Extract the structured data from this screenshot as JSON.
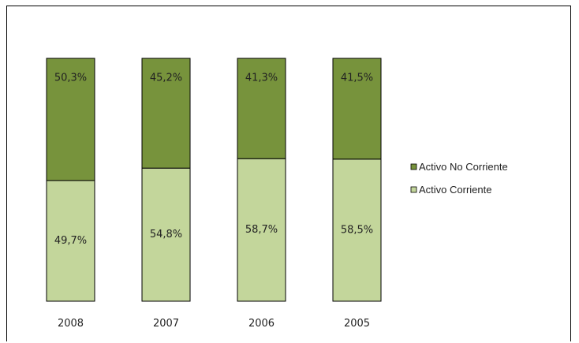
{
  "chart_data": {
    "type": "bar",
    "stacked": true,
    "percent": true,
    "categories": [
      "2008",
      "2007",
      "2006",
      "2005"
    ],
    "series": [
      {
        "name": "Activo Corriente",
        "values": [
          49.7,
          54.8,
          58.7,
          58.5
        ],
        "labels": [
          "49,7%",
          "54,8%",
          "58,7%",
          "58,5%"
        ],
        "color": "#c3d69b"
      },
      {
        "name": "Activo No Corriente",
        "values": [
          50.3,
          45.2,
          41.3,
          41.5
        ],
        "labels": [
          "50,3%",
          "45,2%",
          "41,3%",
          "41,5%"
        ],
        "color": "#77933c"
      }
    ],
    "legend": {
      "position": "right",
      "order": [
        "Activo No Corriente",
        "Activo Corriente"
      ]
    },
    "ylim": [
      0,
      100
    ],
    "grid": false
  }
}
